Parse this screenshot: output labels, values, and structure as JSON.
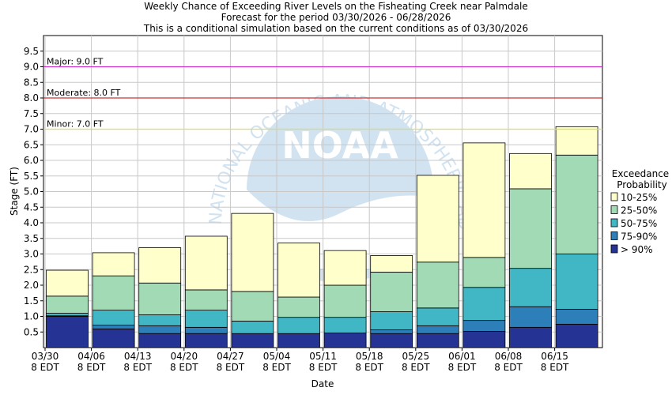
{
  "chart_data": {
    "type": "bar",
    "title_lines": [
      "Weekly Chance of Exceeding River Levels on the Fisheating Creek near Palmdale",
      "Forecast for the period 03/30/2026 - 06/28/2026",
      "This is a conditional simulation based on the current conditions as of 03/30/2026"
    ],
    "xlabel": "Date",
    "ylabel": "Stage (FT)",
    "ylim": [
      0,
      10
    ],
    "yticks": [
      "0.5",
      "1.0",
      "1.5",
      "2.0",
      "2.5",
      "3.0",
      "3.5",
      "4.0",
      "4.5",
      "5.0",
      "5.5",
      "6.0",
      "6.5",
      "7.0",
      "7.5",
      "8.0",
      "8.5",
      "9.0",
      "9.5"
    ],
    "xticks": [
      {
        "date": "03/30",
        "time": "8 EDT"
      },
      {
        "date": "04/06",
        "time": "8 EDT"
      },
      {
        "date": "04/13",
        "time": "8 EDT"
      },
      {
        "date": "04/20",
        "time": "8 EDT"
      },
      {
        "date": "04/27",
        "time": "8 EDT"
      },
      {
        "date": "05/04",
        "time": "8 EDT"
      },
      {
        "date": "05/11",
        "time": "8 EDT"
      },
      {
        "date": "05/18",
        "time": "8 EDT"
      },
      {
        "date": "05/25",
        "time": "8 EDT"
      },
      {
        "date": "06/01",
        "time": "8 EDT"
      },
      {
        "date": "06/08",
        "time": "8 EDT"
      },
      {
        "date": "06/15",
        "time": "8 EDT"
      }
    ],
    "thresholds": [
      {
        "label": "Major: 9.0 FT",
        "value": 9.0,
        "color": "#cc33cc"
      },
      {
        "label": "Moderate: 8.0 FT",
        "value": 8.0,
        "color": "#cc3333"
      },
      {
        "label": "Minor: 7.0 FT",
        "value": 7.0,
        "color": "#e0e040"
      }
    ],
    "legend": {
      "title_lines": [
        "Exceedance",
        "Probability"
      ],
      "position": "right",
      "entries": [
        {
          "label": "10-25%",
          "color": "#ffffcc"
        },
        {
          "label": "25-50%",
          "color": "#a1dab4"
        },
        {
          "label": "50-75%",
          "color": "#41b6c4"
        },
        {
          "label": "75-90%",
          "color": "#2c7fb8"
        },
        {
          "label": "> 90%",
          "color": "#253494"
        }
      ]
    },
    "series_levels": [
      "> 90%",
      "75-90%",
      "50-75%",
      "25-50%",
      "10-25%"
    ],
    "weeks": [
      {
        "week": "03/30",
        "levels": [
          1.0,
          1.02,
          1.1,
          1.65,
          2.48
        ]
      },
      {
        "week": "04/06",
        "levels": [
          0.6,
          0.72,
          1.2,
          2.3,
          3.04
        ]
      },
      {
        "week": "04/13",
        "levels": [
          0.45,
          0.7,
          1.05,
          2.07,
          3.2
        ]
      },
      {
        "week": "04/20",
        "levels": [
          0.45,
          0.65,
          1.2,
          1.85,
          3.57
        ]
      },
      {
        "week": "04/27",
        "levels": [
          0.45,
          0.45,
          0.85,
          1.8,
          4.3
        ]
      },
      {
        "week": "05/04",
        "levels": [
          0.45,
          0.45,
          0.97,
          1.62,
          3.35
        ]
      },
      {
        "week": "05/11",
        "levels": [
          0.47,
          0.47,
          0.97,
          2.0,
          3.11
        ]
      },
      {
        "week": "05/18",
        "levels": [
          0.45,
          0.57,
          1.15,
          2.42,
          2.95
        ]
      },
      {
        "week": "05/25",
        "levels": [
          0.45,
          0.7,
          1.27,
          2.74,
          5.52
        ]
      },
      {
        "week": "06/01",
        "levels": [
          0.52,
          0.87,
          1.93,
          2.89,
          6.56
        ]
      },
      {
        "week": "06/08",
        "levels": [
          0.65,
          1.31,
          2.54,
          5.09,
          6.22
        ]
      },
      {
        "week": "06/15",
        "levels": [
          0.75,
          1.23,
          3.0,
          6.17,
          7.08
        ]
      }
    ],
    "grid": true
  },
  "watermark": {
    "logo_text": "NOAA",
    "ring_text": "NATIONAL OCEANIC AND ATMOSPHERIC ADMINISTRATION"
  }
}
